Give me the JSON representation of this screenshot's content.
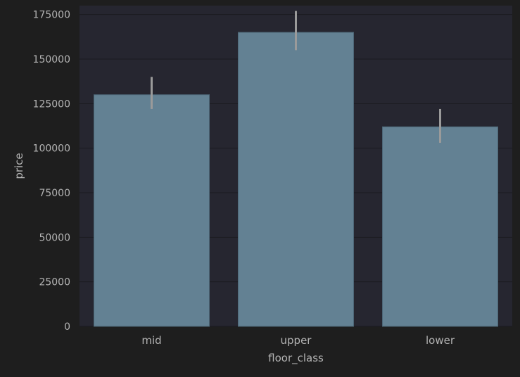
{
  "theme": {
    "figure_bg": "#1e1e1e",
    "axes_bg": "#262630",
    "grid_color": "#1b1b20",
    "bar_color": "#638193",
    "bar_edge": "#4c6676",
    "errorbar_color": "#9a9a9a",
    "text_color": "#b4b4b4"
  },
  "chart_data": {
    "type": "bar",
    "title": "",
    "xlabel": "floor_class",
    "ylabel": "price",
    "categories": [
      "mid",
      "upper",
      "lower"
    ],
    "values": [
      130000,
      165000,
      112000
    ],
    "error_low": [
      122000,
      155000,
      103000
    ],
    "error_high": [
      140000,
      177000,
      122000
    ],
    "ylim": [
      0,
      180000
    ],
    "yticks": [
      0,
      25000,
      50000,
      75000,
      100000,
      125000,
      150000,
      175000
    ],
    "ytick_labels": [
      "0",
      "25000",
      "50000",
      "75000",
      "100000",
      "125000",
      "150000",
      "175000"
    ],
    "grid": true,
    "legend": "none"
  }
}
